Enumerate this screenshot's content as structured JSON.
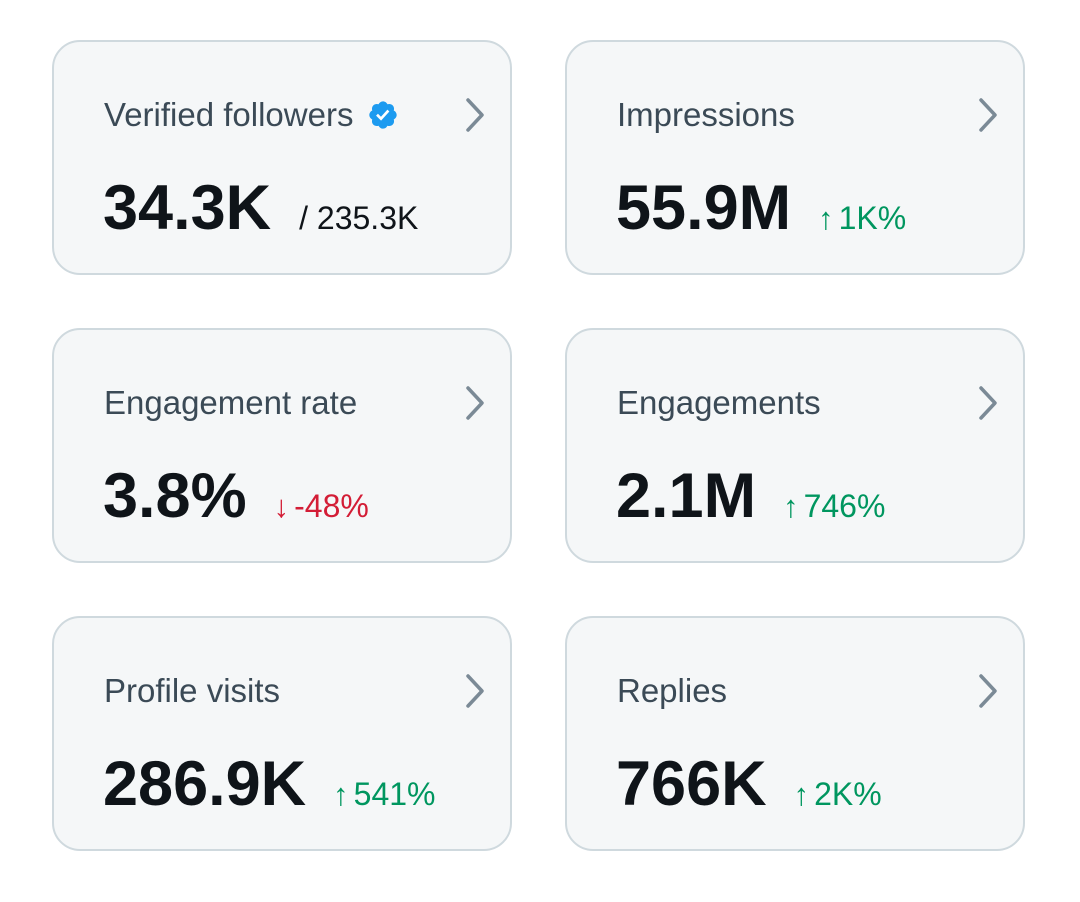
{
  "cards": [
    {
      "title": "Verified followers",
      "value": "34.3K",
      "secondary": "/ 235.3K",
      "verified_badge": true,
      "chevron_icon": "chevron-right-icon"
    },
    {
      "title": "Impressions",
      "value": "55.9M",
      "delta": "1K%",
      "delta_direction": "up",
      "delta_arrow": "↑",
      "chevron_icon": "chevron-right-icon"
    },
    {
      "title": "Engagement rate",
      "value": "3.8%",
      "delta": "-48%",
      "delta_direction": "down",
      "delta_arrow": "↓",
      "chevron_icon": "chevron-right-icon"
    },
    {
      "title": "Engagements",
      "value": "2.1M",
      "delta": "746%",
      "delta_direction": "up",
      "delta_arrow": "↑",
      "chevron_icon": "chevron-right-icon"
    },
    {
      "title": "Profile visits",
      "value": "286.9K",
      "delta": "541%",
      "delta_direction": "up",
      "delta_arrow": "↑",
      "chevron_icon": "chevron-right-icon"
    },
    {
      "title": "Replies",
      "value": "766K",
      "delta": "2K%",
      "delta_direction": "up",
      "delta_arrow": "↑",
      "chevron_icon": "chevron-right-icon"
    }
  ],
  "colors": {
    "card_background": "#f5f7f8",
    "card_border": "#cfd9de",
    "title_text": "#3b4a56",
    "value_text": "#0f1419",
    "positive": "#00965f",
    "negative": "#d31d36",
    "verified_badge": "#1d9bf0",
    "chevron": "#7b8a96"
  }
}
